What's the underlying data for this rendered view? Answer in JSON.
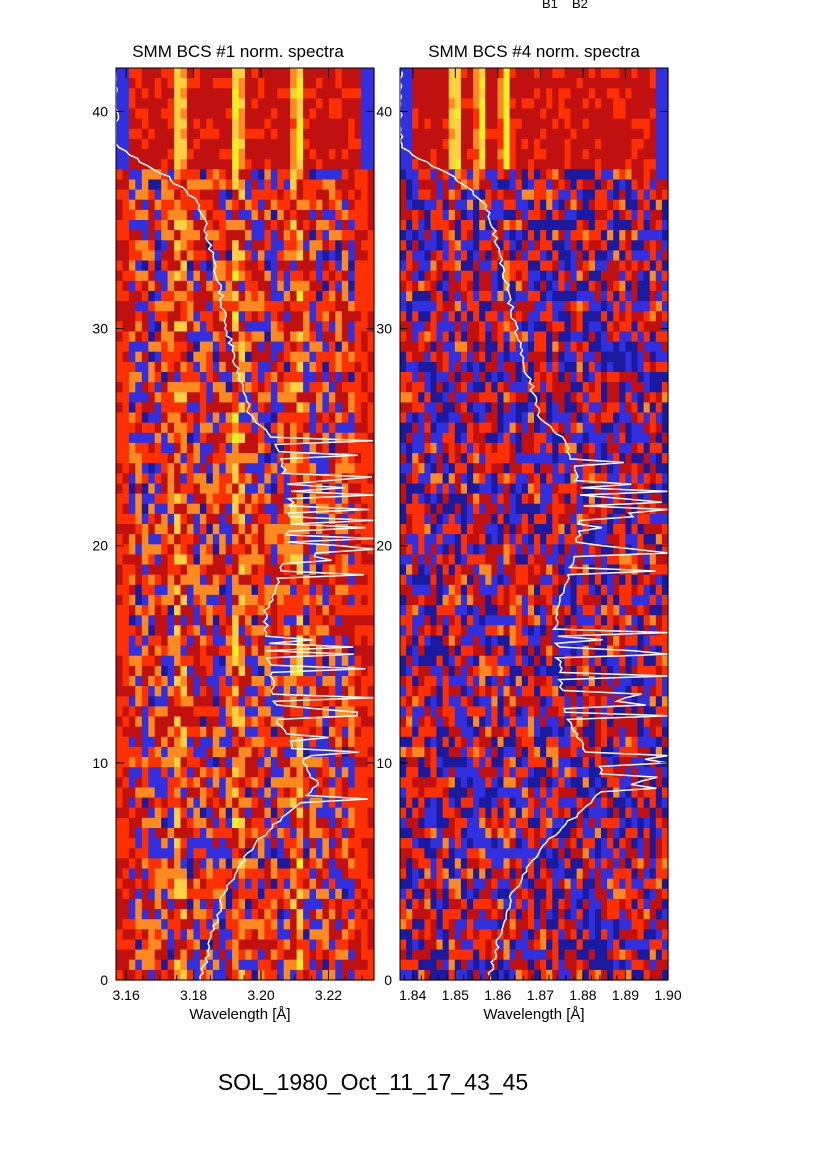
{
  "header_labels": [
    "B1",
    "B2"
  ],
  "footer_title": "SOL_1980_Oct_11_17_43_45",
  "chart_data": [
    {
      "type": "heatmap",
      "title": "SMM BCS #1 norm. spectra",
      "xlabel": "Wavelength [Å]",
      "ylabel": "",
      "xlim": [
        3.157,
        3.2335
      ],
      "ylim": [
        0,
        42
      ],
      "xticks": [
        "3.16",
        "3.18",
        "3.20",
        "3.22"
      ],
      "xtick_values": [
        3.16,
        3.18,
        3.2,
        3.22
      ],
      "yticks": [
        "0",
        "10",
        "20",
        "30",
        "40"
      ],
      "yticks_values": [
        0,
        10,
        20,
        30,
        40
      ],
      "bright_lines": [
        3.176,
        3.193,
        3.211
      ],
      "colormap": [
        "#000000",
        "#1a1aa0",
        "#3030e0",
        "#c01010",
        "#ff3000",
        "#ff8a20",
        "#ffd040",
        "#f0f020"
      ],
      "overlay": {
        "color": "#ffffff"
      }
    },
    {
      "type": "heatmap",
      "title": "SMM BCS #4 norm. spectra",
      "xlabel": "Wavelength [Å]",
      "ylabel": "",
      "xlim": [
        1.837,
        1.9
      ],
      "ylim": [
        0,
        42
      ],
      "xticks": [
        "1.84",
        "1.85",
        "1.86",
        "1.87",
        "1.88",
        "1.89",
        "1.90"
      ],
      "xtick_values": [
        1.84,
        1.85,
        1.86,
        1.87,
        1.88,
        1.89,
        1.9
      ],
      "yticks": [
        "0",
        "10",
        "20",
        "30",
        "40"
      ],
      "yticks_values": [
        0,
        10,
        20,
        30,
        40
      ],
      "bright_lines": [
        1.85,
        1.856,
        1.862
      ],
      "colormap": [
        "#000000",
        "#1a1aa0",
        "#3030e0",
        "#c01010",
        "#ff3000",
        "#ff8a20",
        "#ffd040",
        "#f0f020"
      ],
      "overlay": {
        "color": "#ffffff"
      }
    }
  ],
  "lightcurve": {
    "time": [
      0,
      2,
      4,
      6,
      7,
      8,
      9,
      12,
      14,
      16,
      17,
      18,
      20,
      22,
      24,
      25,
      26,
      27,
      28,
      30,
      32,
      34,
      35,
      36,
      37,
      38,
      38.5,
      40,
      42
    ],
    "intensity": [
      0.33,
      0.37,
      0.42,
      0.52,
      0.6,
      0.7,
      0.78,
      0.62,
      0.6,
      0.58,
      0.58,
      0.62,
      0.66,
      0.68,
      0.64,
      0.6,
      0.52,
      0.5,
      0.47,
      0.43,
      0.4,
      0.36,
      0.34,
      0.3,
      0.2,
      0.05,
      0.0,
      0.0,
      0.0
    ]
  }
}
